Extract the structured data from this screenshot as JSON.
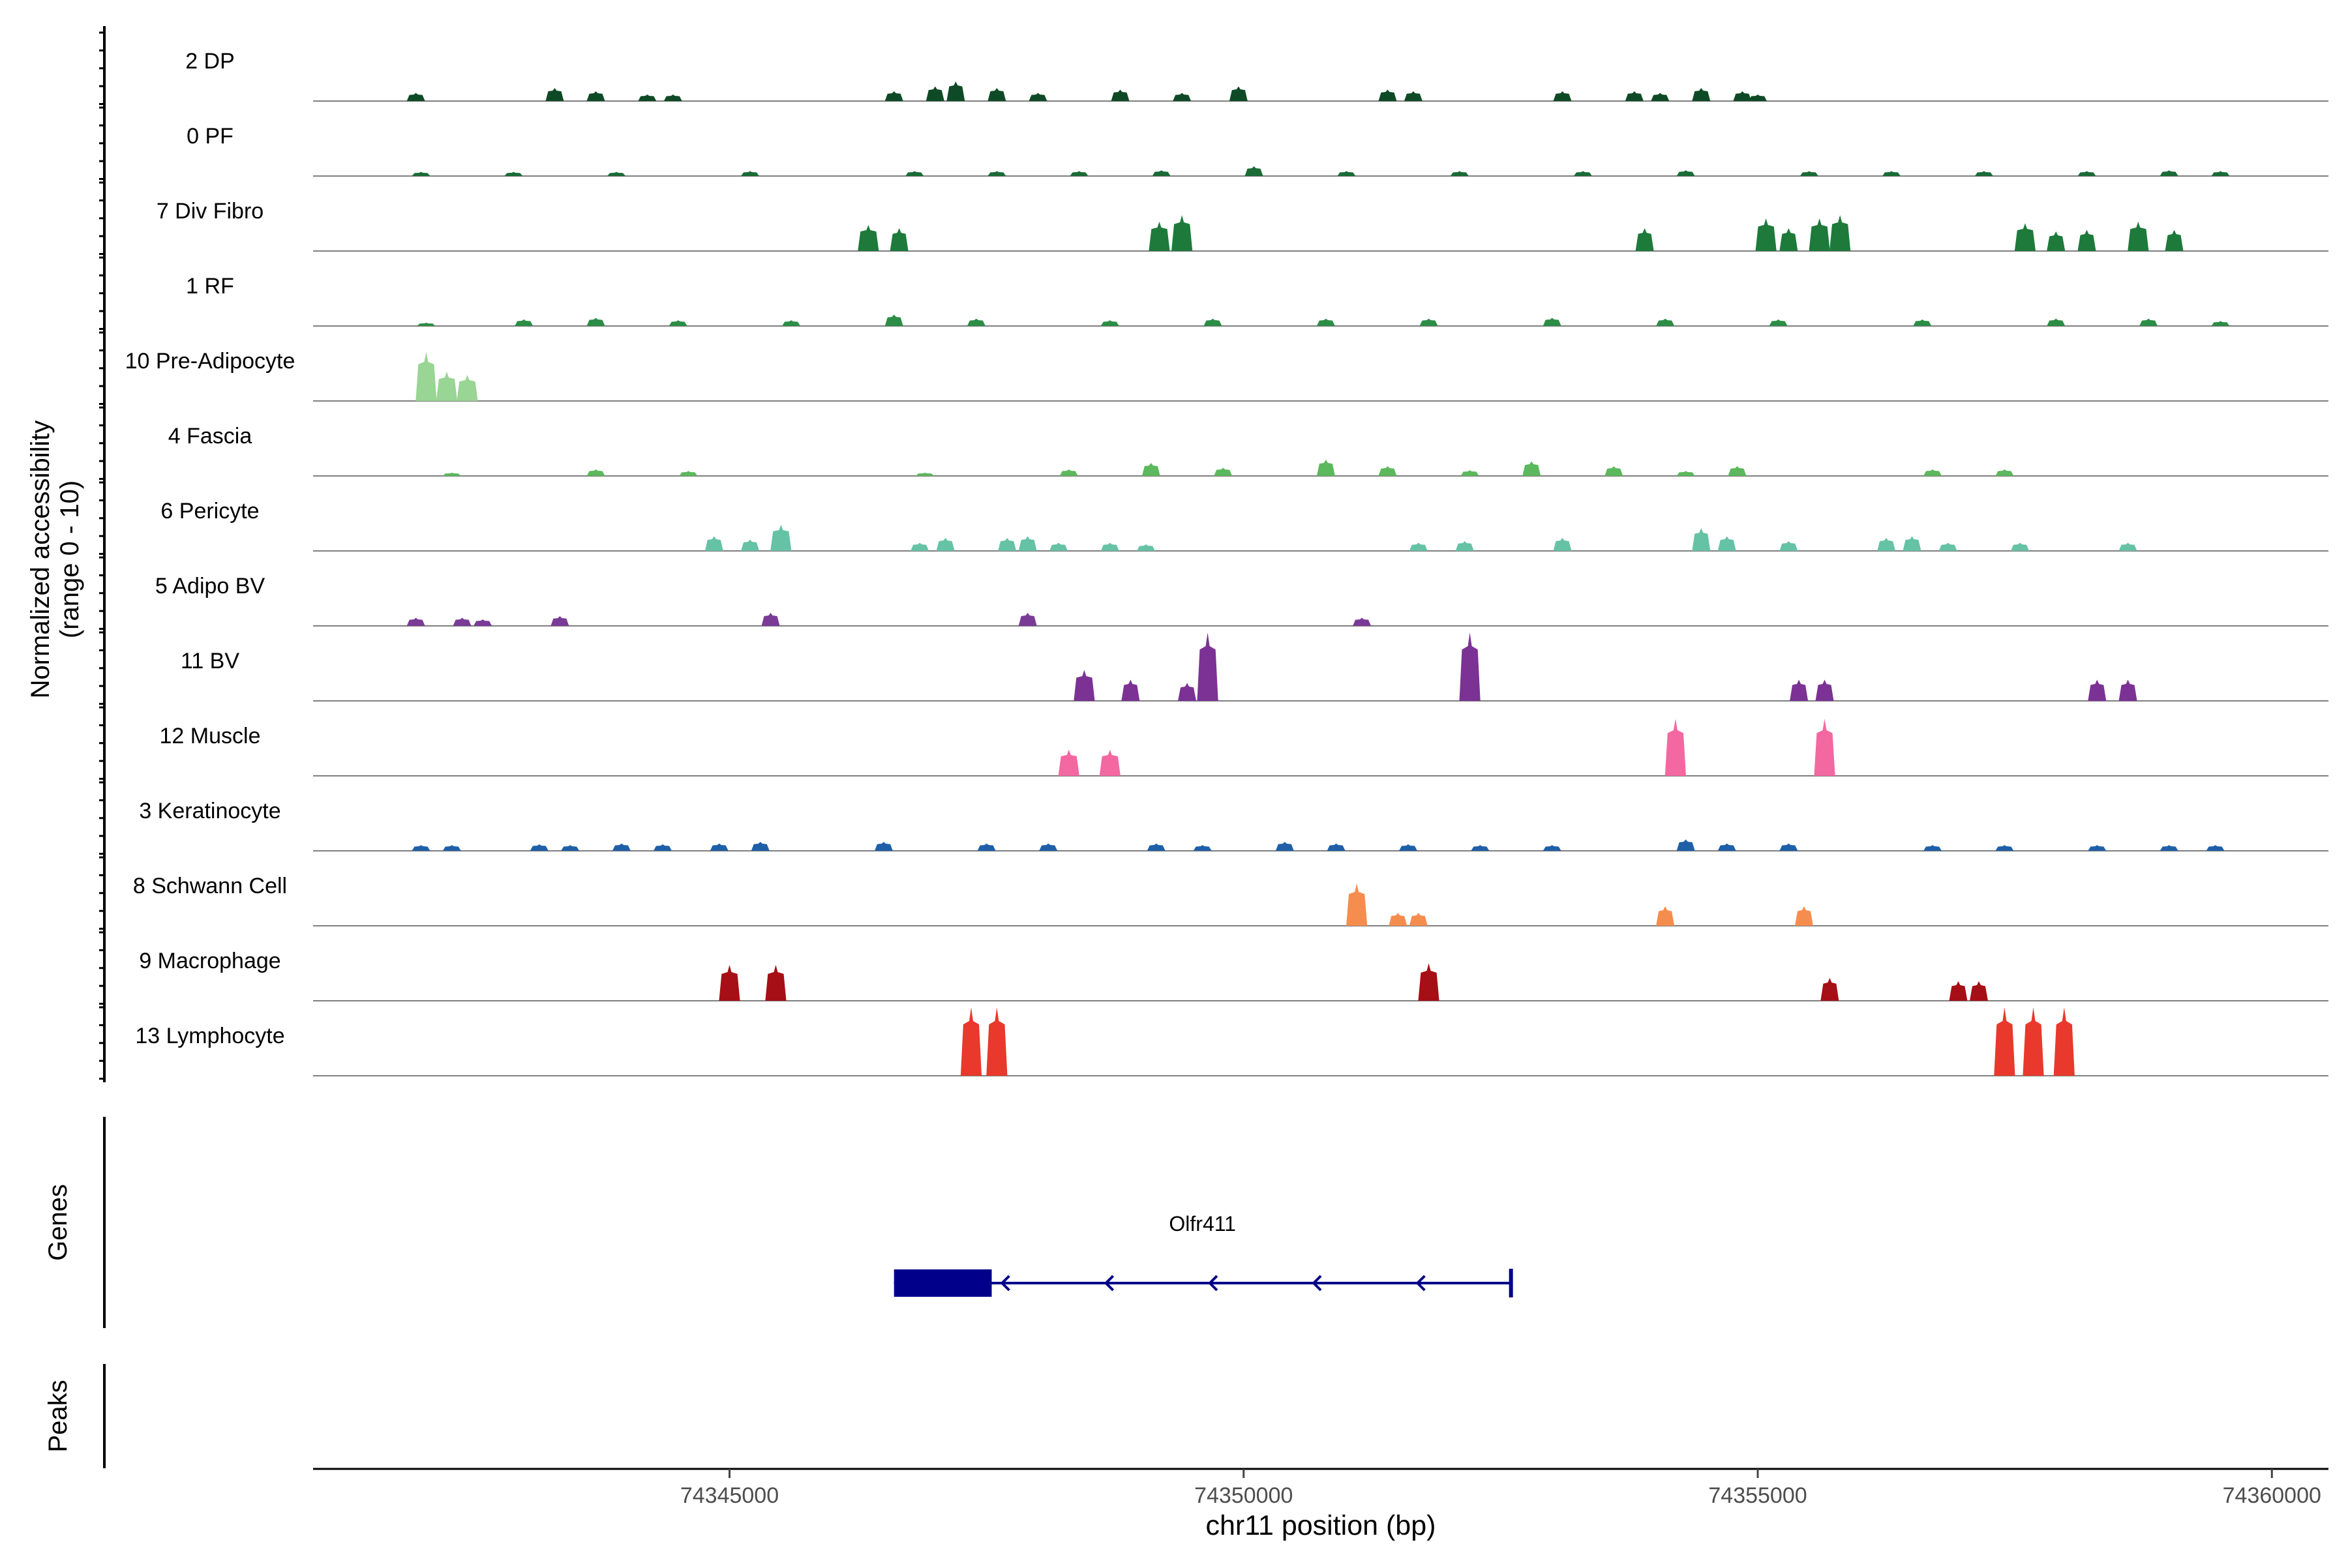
{
  "chart_data": {
    "type": "area",
    "title": "",
    "xlabel": "chr11 position (bp)",
    "ylabel": "Normalized accessibility",
    "ylabel_range": "(range 0 - 10)",
    "ylim": [
      0,
      10
    ],
    "xlim": [
      74340950,
      74360550
    ],
    "x_ticks": [
      74345000,
      74350000,
      74355000,
      74360000
    ],
    "x_tick_labels": [
      "74345000",
      "74350000",
      "74355000",
      "74360000"
    ],
    "tracks": [
      {
        "name": "2 DP",
        "color": "#0f4a26",
        "peaks": [
          [
            74341950,
            0.5
          ],
          [
            74343300,
            0.8
          ],
          [
            74343700,
            0.6
          ],
          [
            74344200,
            0.4
          ],
          [
            74344450,
            0.4
          ],
          [
            74346600,
            0.6
          ],
          [
            74347000,
            0.9
          ],
          [
            74347200,
            1.2
          ],
          [
            74347600,
            0.8
          ],
          [
            74348000,
            0.5
          ],
          [
            74348800,
            0.7
          ],
          [
            74349400,
            0.5
          ],
          [
            74349950,
            0.9
          ],
          [
            74351400,
            0.7
          ],
          [
            74351650,
            0.6
          ],
          [
            74353100,
            0.6
          ],
          [
            74353800,
            0.6
          ],
          [
            74354050,
            0.5
          ],
          [
            74354450,
            0.8
          ],
          [
            74354850,
            0.6
          ],
          [
            74355000,
            0.4
          ]
        ]
      },
      {
        "name": "0 PF",
        "color": "#1a6b36",
        "peaks": [
          [
            74342000,
            0.25
          ],
          [
            74342900,
            0.25
          ],
          [
            74343900,
            0.25
          ],
          [
            74345200,
            0.3
          ],
          [
            74346800,
            0.3
          ],
          [
            74347600,
            0.3
          ],
          [
            74348400,
            0.3
          ],
          [
            74349200,
            0.35
          ],
          [
            74350100,
            0.6
          ],
          [
            74351000,
            0.3
          ],
          [
            74352100,
            0.3
          ],
          [
            74353300,
            0.3
          ],
          [
            74354300,
            0.35
          ],
          [
            74355500,
            0.3
          ],
          [
            74356300,
            0.3
          ],
          [
            74357200,
            0.3
          ],
          [
            74358200,
            0.3
          ],
          [
            74359000,
            0.35
          ],
          [
            74359500,
            0.3
          ]
        ]
      },
      {
        "name": "7 Div Fibro",
        "color": "#1d7a3b",
        "peaks": [
          [
            74346350,
            1.6
          ],
          [
            74346650,
            1.4
          ],
          [
            74349180,
            1.8
          ],
          [
            74349400,
            2.2
          ],
          [
            74353900,
            1.4
          ],
          [
            74355080,
            2.0
          ],
          [
            74355300,
            1.4
          ],
          [
            74355600,
            2.0
          ],
          [
            74355800,
            2.2
          ],
          [
            74357600,
            1.7
          ],
          [
            74357900,
            1.2
          ],
          [
            74358200,
            1.3
          ],
          [
            74358700,
            1.8
          ],
          [
            74359050,
            1.3
          ]
        ]
      },
      {
        "name": "1 RF",
        "color": "#2c8e46",
        "peaks": [
          [
            74342050,
            0.2
          ],
          [
            74343000,
            0.4
          ],
          [
            74343700,
            0.5
          ],
          [
            74344500,
            0.35
          ],
          [
            74345600,
            0.35
          ],
          [
            74346600,
            0.7
          ],
          [
            74347400,
            0.45
          ],
          [
            74348700,
            0.35
          ],
          [
            74349700,
            0.45
          ],
          [
            74350800,
            0.45
          ],
          [
            74351800,
            0.45
          ],
          [
            74353000,
            0.5
          ],
          [
            74354100,
            0.45
          ],
          [
            74355200,
            0.4
          ],
          [
            74356600,
            0.4
          ],
          [
            74357900,
            0.45
          ],
          [
            74358800,
            0.45
          ],
          [
            74359500,
            0.3
          ]
        ]
      },
      {
        "name": "10 Pre-Adipocyte",
        "color": "#99d594",
        "peaks": [
          [
            74342050,
            3.0
          ],
          [
            74342250,
            1.8
          ],
          [
            74342450,
            1.6
          ]
        ]
      },
      {
        "name": "4 Fascia",
        "color": "#5cb85c",
        "peaks": [
          [
            74342300,
            0.2
          ],
          [
            74343700,
            0.4
          ],
          [
            74344600,
            0.3
          ],
          [
            74346900,
            0.2
          ],
          [
            74348300,
            0.4
          ],
          [
            74349100,
            0.8
          ],
          [
            74349800,
            0.5
          ],
          [
            74350800,
            1.0
          ],
          [
            74351400,
            0.6
          ],
          [
            74352200,
            0.35
          ],
          [
            74352800,
            0.9
          ],
          [
            74353600,
            0.6
          ],
          [
            74354300,
            0.3
          ],
          [
            74354800,
            0.6
          ],
          [
            74356700,
            0.4
          ],
          [
            74357400,
            0.4
          ]
        ]
      },
      {
        "name": "6 Pericyte",
        "color": "#66c2a4",
        "peaks": [
          [
            74344850,
            0.9
          ],
          [
            74345200,
            0.7
          ],
          [
            74345500,
            1.6
          ],
          [
            74346850,
            0.5
          ],
          [
            74347100,
            0.8
          ],
          [
            74347700,
            0.8
          ],
          [
            74347900,
            0.9
          ],
          [
            74348200,
            0.5
          ],
          [
            74348700,
            0.5
          ],
          [
            74349050,
            0.4
          ],
          [
            74351700,
            0.5
          ],
          [
            74352150,
            0.6
          ],
          [
            74353100,
            0.8
          ],
          [
            74354450,
            1.4
          ],
          [
            74354700,
            0.9
          ],
          [
            74355300,
            0.6
          ],
          [
            74356250,
            0.8
          ],
          [
            74356500,
            0.9
          ],
          [
            74356850,
            0.5
          ],
          [
            74357550,
            0.5
          ],
          [
            74358600,
            0.5
          ]
        ]
      },
      {
        "name": "5 Adipo BV",
        "color": "#7a3b96",
        "peaks": [
          [
            74341950,
            0.5
          ],
          [
            74342400,
            0.5
          ],
          [
            74342600,
            0.4
          ],
          [
            74343350,
            0.6
          ],
          [
            74345400,
            0.8
          ],
          [
            74347900,
            0.8
          ],
          [
            74351150,
            0.5
          ]
        ]
      },
      {
        "name": "11 BV",
        "color": "#7b3294",
        "peaks": [
          [
            74348450,
            1.9
          ],
          [
            74348900,
            1.3
          ],
          [
            74349450,
            1.1
          ],
          [
            74349650,
            4.2
          ],
          [
            74352200,
            4.2
          ],
          [
            74355400,
            1.3
          ],
          [
            74355650,
            1.3
          ],
          [
            74358300,
            1.3
          ],
          [
            74358600,
            1.3
          ]
        ]
      },
      {
        "name": "12 Muscle",
        "color": "#f468a2",
        "peaks": [
          [
            74348300,
            1.6
          ],
          [
            74348700,
            1.6
          ],
          [
            74354200,
            3.5
          ],
          [
            74355650,
            3.5
          ]
        ]
      },
      {
        "name": "3 Keratinocyte",
        "color": "#1f5fa8",
        "peaks": [
          [
            74342000,
            0.35
          ],
          [
            74342300,
            0.35
          ],
          [
            74343150,
            0.4
          ],
          [
            74343450,
            0.35
          ],
          [
            74343950,
            0.45
          ],
          [
            74344350,
            0.4
          ],
          [
            74344900,
            0.45
          ],
          [
            74345300,
            0.55
          ],
          [
            74346500,
            0.55
          ],
          [
            74347500,
            0.45
          ],
          [
            74348100,
            0.45
          ],
          [
            74349150,
            0.45
          ],
          [
            74349600,
            0.35
          ],
          [
            74350400,
            0.55
          ],
          [
            74350900,
            0.45
          ],
          [
            74351600,
            0.4
          ],
          [
            74352300,
            0.35
          ],
          [
            74353000,
            0.35
          ],
          [
            74354300,
            0.7
          ],
          [
            74354700,
            0.45
          ],
          [
            74355300,
            0.45
          ],
          [
            74356700,
            0.35
          ],
          [
            74357400,
            0.35
          ],
          [
            74358300,
            0.35
          ],
          [
            74359000,
            0.35
          ],
          [
            74359450,
            0.35
          ]
        ]
      },
      {
        "name": "8 Schwann Cell",
        "color": "#f58d4f",
        "peaks": [
          [
            74351100,
            2.6
          ],
          [
            74351500,
            0.8
          ],
          [
            74351700,
            0.8
          ],
          [
            74354100,
            1.2
          ],
          [
            74355450,
            1.2
          ]
        ]
      },
      {
        "name": "9 Macrophage",
        "color": "#a50f15",
        "peaks": [
          [
            74345000,
            2.2
          ],
          [
            74345450,
            2.2
          ],
          [
            74351800,
            2.3
          ],
          [
            74355700,
            1.4
          ],
          [
            74356950,
            1.2
          ],
          [
            74357150,
            1.2
          ]
        ]
      },
      {
        "name": "13 Lymphocyte",
        "color": "#e8392c",
        "peaks": [
          [
            74347350,
            4.2
          ],
          [
            74347600,
            4.2
          ],
          [
            74357400,
            4.2
          ],
          [
            74357680,
            4.2
          ],
          [
            74357980,
            4.2
          ]
        ]
      }
    ],
    "genes_label": "Genes",
    "peaks_label": "Peaks",
    "gene": {
      "name": "Olfr411",
      "start": 74346600,
      "end": 74352600,
      "cds_start": 74346600,
      "cds_end": 74347550,
      "strand": "-",
      "color": "#00008b"
    }
  }
}
